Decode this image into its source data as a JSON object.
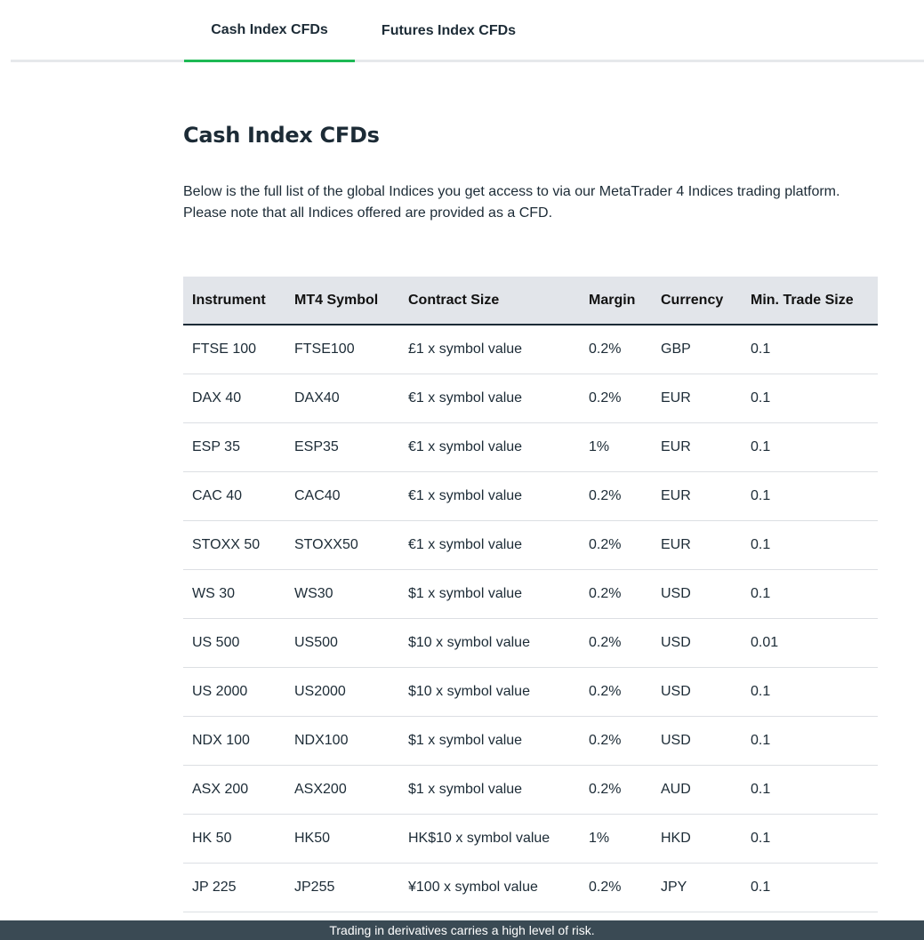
{
  "tabs": [
    {
      "label": "Cash Index CFDs",
      "active": true
    },
    {
      "label": "Futures Index CFDs",
      "active": false
    }
  ],
  "section": {
    "title": "Cash Index CFDs",
    "intro": "Below is the full list of the global Indices you get access to via our MetaTrader 4 Indices trading platform. Please note that all Indices offered are provided as a CFD."
  },
  "table": {
    "headers": [
      "Instrument",
      "MT4 Symbol",
      "Contract Size",
      "Margin",
      "Currency",
      "Min. Trade Size"
    ],
    "rows": [
      [
        "FTSE 100",
        "FTSE100",
        "£1 x symbol value",
        "0.2%",
        "GBP",
        "0.1"
      ],
      [
        "DAX 40",
        "DAX40",
        "€1 x symbol value",
        "0.2%",
        "EUR",
        "0.1"
      ],
      [
        "ESP 35",
        "ESP35",
        "€1 x symbol value",
        "1%",
        "EUR",
        "0.1"
      ],
      [
        "CAC 40",
        "CAC40",
        "€1 x symbol value",
        "0.2%",
        "EUR",
        "0.1"
      ],
      [
        "STOXX 50",
        "STOXX50",
        "€1 x symbol value",
        "0.2%",
        "EUR",
        "0.1"
      ],
      [
        "WS 30",
        "WS30",
        "$1 x symbol value",
        "0.2%",
        "USD",
        "0.1"
      ],
      [
        "US 500",
        "US500",
        "$10 x symbol value",
        "0.2%",
        "USD",
        "0.01"
      ],
      [
        "US 2000",
        "US2000",
        "$10 x symbol value",
        "0.2%",
        "USD",
        "0.1"
      ],
      [
        "NDX 100",
        "NDX100",
        "$1 x symbol value",
        "0.2%",
        "USD",
        "0.1"
      ],
      [
        "ASX 200",
        "ASX200",
        "$1 x symbol value",
        "0.2%",
        "AUD",
        "0.1"
      ],
      [
        "HK 50",
        "HK50",
        "HK$10 x symbol value",
        "1%",
        "HKD",
        "0.1"
      ],
      [
        "JP 225",
        "JP255",
        "¥100 x symbol value",
        "0.2%",
        "JPY",
        "0.1"
      ]
    ]
  },
  "risk_warning": "Trading in derivatives carries a high level of risk.",
  "colors": {
    "accent": "#1db954",
    "text": "#1c2b36",
    "header_bg": "#e2e5ea",
    "risk_bar_bg": "#3a4a54"
  }
}
